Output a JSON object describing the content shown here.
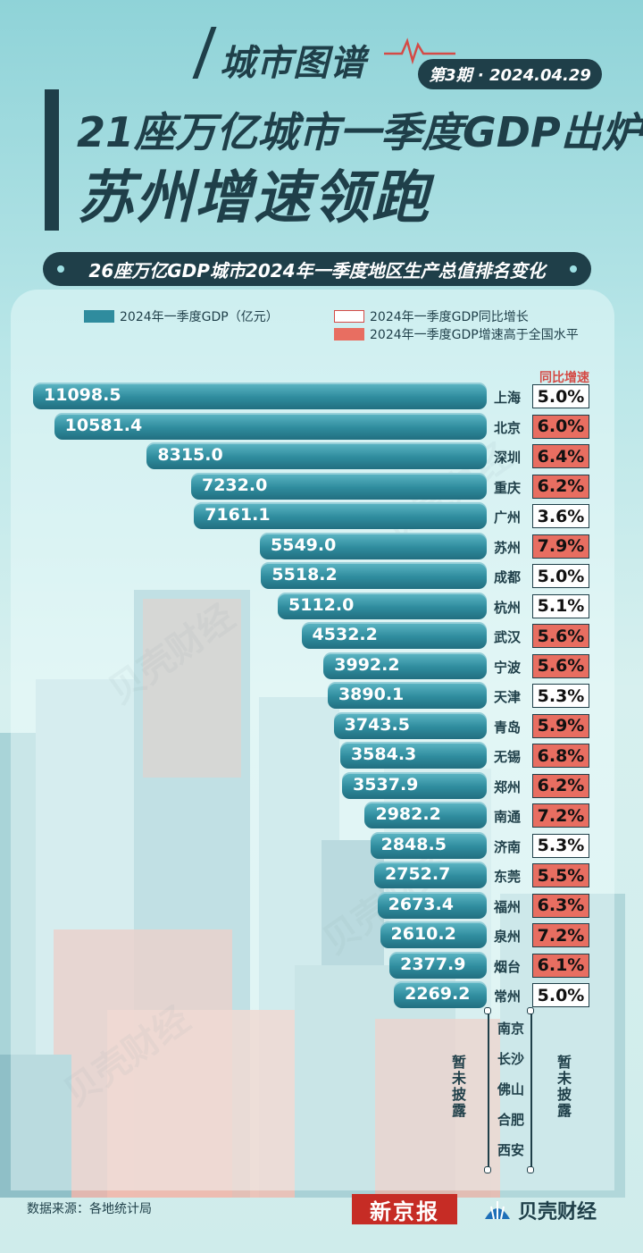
{
  "header": {
    "brand": "城市图谱",
    "issue": "第3期 · 2024.04.29",
    "title_line1": "21座万亿城市一季度GDP出炉",
    "title_line2": "苏州增速领跑",
    "subtitle": "26座万亿GDP城市2024年一季度地区生产总值排名变化"
  },
  "legend": {
    "gdp": "2024年一季度GDP（亿元）",
    "growth": "2024年一季度GDP同比增长",
    "growth_high": "2024年一季度GDP增速高于全国水平",
    "growth_col_head": "同比增速"
  },
  "colors": {
    "bar": "#2f8c9e",
    "high_growth": "#e86e61",
    "normal_growth": "#ffffff",
    "text_dark": "#1f3f49"
  },
  "chart_data": {
    "type": "bar",
    "orientation": "horizontal",
    "categories": [
      "上海",
      "北京",
      "深圳",
      "重庆",
      "广州",
      "苏州",
      "成都",
      "杭州",
      "武汉",
      "宁波",
      "天津",
      "青岛",
      "无锡",
      "郑州",
      "南通",
      "济南",
      "东莞",
      "福州",
      "泉州",
      "烟台",
      "常州"
    ],
    "series": [
      {
        "name": "2024年一季度GDP（亿元）",
        "values": [
          11098.5,
          10581.4,
          8315.0,
          7232.0,
          7161.1,
          5549.0,
          5518.2,
          5112.0,
          4532.2,
          3992.2,
          3890.1,
          3743.5,
          3584.3,
          3537.9,
          2982.2,
          2848.5,
          2752.7,
          2673.4,
          2610.2,
          2377.9,
          2269.2
        ]
      },
      {
        "name": "2024年一季度GDP同比增长",
        "values": [
          "5.0%",
          "6.0%",
          "6.4%",
          "6.2%",
          "3.6%",
          "7.9%",
          "5.0%",
          "5.1%",
          "5.6%",
          "5.6%",
          "5.3%",
          "5.9%",
          "6.8%",
          "6.2%",
          "7.2%",
          "5.3%",
          "5.5%",
          "6.3%",
          "7.2%",
          "6.1%",
          "5.0%"
        ]
      }
    ],
    "above_national": [
      false,
      true,
      true,
      true,
      false,
      true,
      false,
      false,
      true,
      true,
      false,
      true,
      true,
      true,
      true,
      false,
      true,
      true,
      true,
      true,
      false
    ],
    "value_labels": [
      "11098.5",
      "10581.4",
      "8315.0",
      "7232.0",
      "7161.1",
      "5549.0",
      "5518.2",
      "5112.0",
      "4532.2",
      "3992.2",
      "3890.1",
      "3743.5",
      "3584.3",
      "3537.9",
      "2982.2",
      "2848.5",
      "2752.7",
      "2673.4",
      "2610.2",
      "2377.9",
      "2269.2"
    ],
    "undisclosed_cities": [
      "南京",
      "长沙",
      "佛山",
      "合肥",
      "西安"
    ],
    "undisclosed_label": "暂未披露"
  },
  "footer": {
    "source": "数据来源：各地统计局",
    "logo_left": "新京报",
    "logo_right": "贝壳财经"
  },
  "watermark": "贝壳财经"
}
